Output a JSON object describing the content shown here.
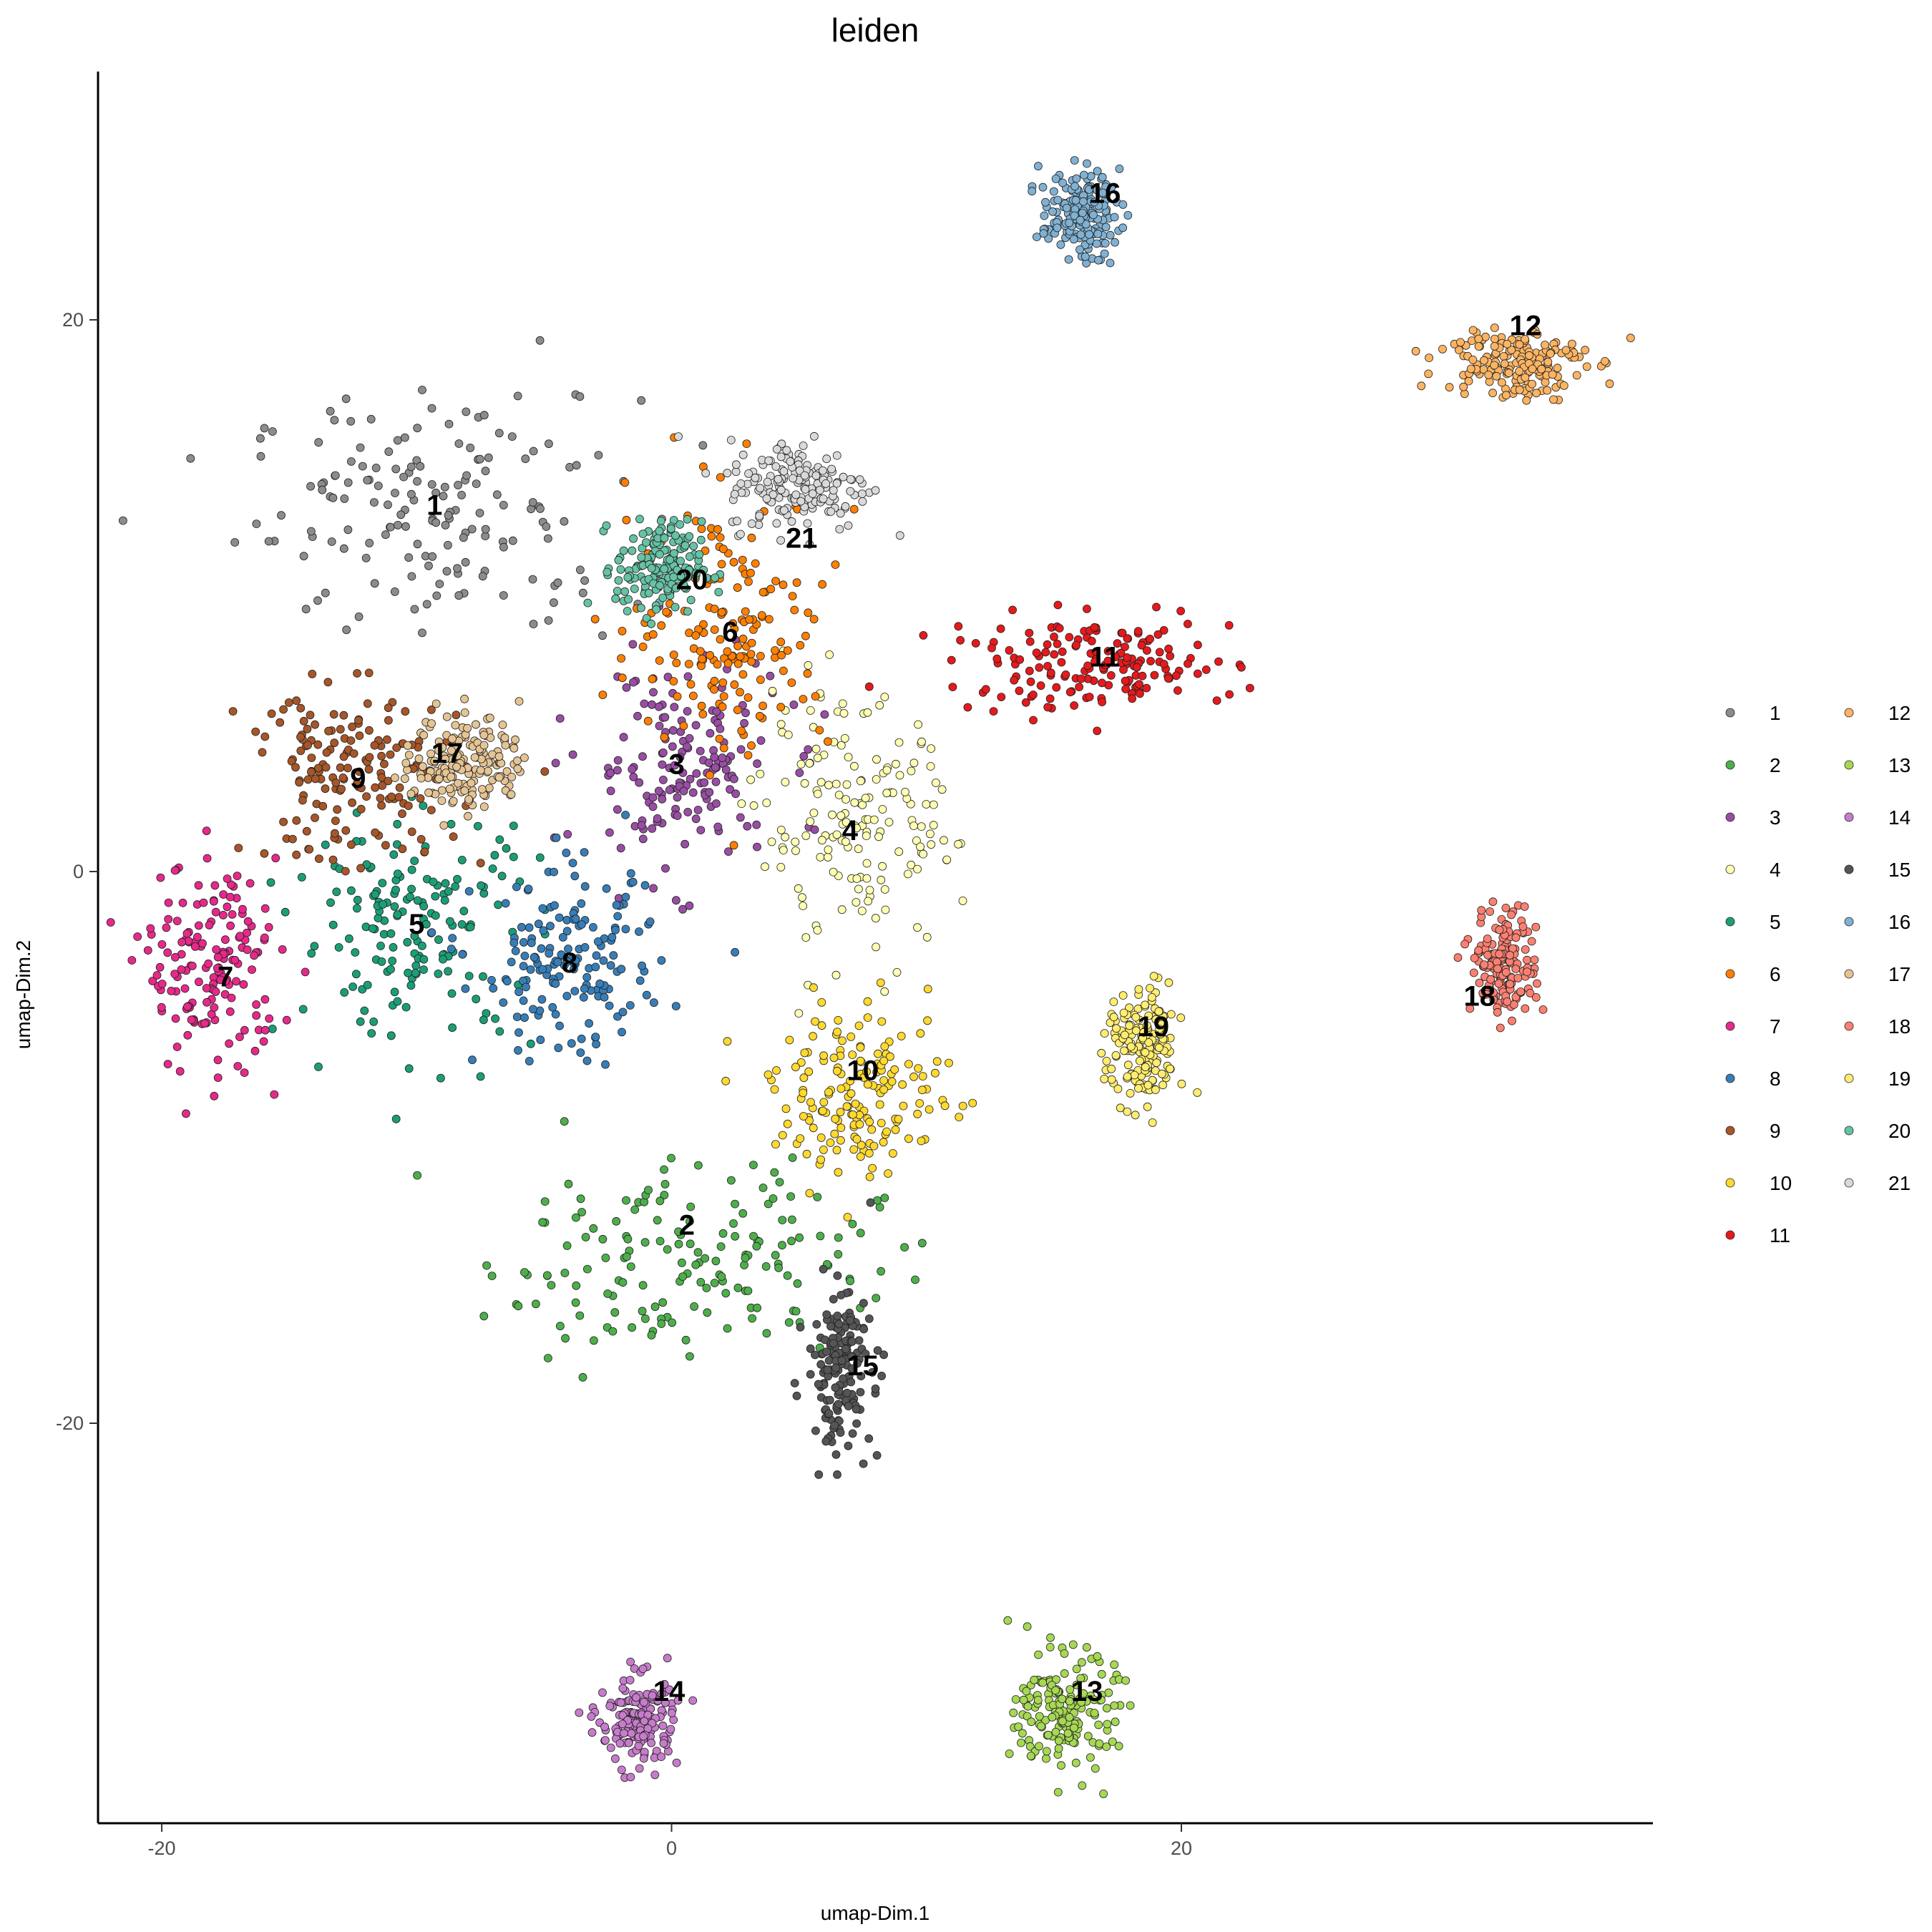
{
  "chart_data": {
    "type": "scatter",
    "title": "leiden",
    "xlabel": "umap-Dim.1",
    "ylabel": "umap-Dim.2",
    "xlim": [
      -22.5,
      38.5
    ],
    "ylim": [
      -34.5,
      29
    ],
    "xticks": [
      -20,
      0,
      20
    ],
    "yticks": [
      20,
      0,
      -20
    ],
    "xtick_labels": [
      "-20",
      "0",
      "20"
    ],
    "ytick_labels": [
      "20",
      "0",
      "-20"
    ],
    "grid": false,
    "legend_position": "right",
    "legend_columns": 2,
    "series": [
      {
        "name": "1",
        "color": "#8C8C8C",
        "center": [
          -9,
          13
        ],
        "spread": [
          5.5,
          3.0
        ]
      },
      {
        "name": "2",
        "color": "#4DAF4A",
        "center": [
          0.5,
          -14
        ],
        "spread": [
          5.5,
          2.6
        ]
      },
      {
        "name": "3",
        "color": "#984EA3",
        "center": [
          0.3,
          3.8
        ],
        "spread": [
          2.8,
          2.8
        ]
      },
      {
        "name": "4",
        "color": "#FFFFB3",
        "center": [
          7.3,
          1.6
        ],
        "spread": [
          2.8,
          3.2
        ]
      },
      {
        "name": "5",
        "color": "#1B9E77",
        "center": [
          -10,
          -2
        ],
        "spread": [
          3.4,
          3.0
        ]
      },
      {
        "name": "6",
        "color": "#FF7F00",
        "center": [
          2.3,
          9
        ],
        "spread": [
          2.8,
          3.4
        ]
      },
      {
        "name": "7",
        "color": "#E7298A",
        "center": [
          -18,
          -3.5
        ],
        "spread": [
          1.9,
          2.7
        ]
      },
      {
        "name": "8",
        "color": "#377EB8",
        "center": [
          -4,
          -3.5
        ],
        "spread": [
          2.6,
          2.4
        ]
      },
      {
        "name": "9",
        "color": "#A65628",
        "center": [
          -12.5,
          3.5
        ],
        "spread": [
          3.0,
          2.2
        ]
      },
      {
        "name": "10",
        "color": "#FFD92F",
        "center": [
          7.5,
          -8
        ],
        "spread": [
          2.5,
          2.2
        ]
      },
      {
        "name": "11",
        "color": "#E41A1C",
        "center": [
          16.5,
          7.5
        ],
        "spread": [
          4.0,
          1.2
        ]
      },
      {
        "name": "12",
        "color": "#FDB462",
        "center": [
          33,
          18.5
        ],
        "spread": [
          2.0,
          1.0
        ]
      },
      {
        "name": "13",
        "color": "#A6D854",
        "center": [
          15.5,
          -30.5
        ],
        "spread": [
          1.4,
          1.5
        ]
      },
      {
        "name": "14",
        "color": "#C77CCB",
        "center": [
          -1.3,
          -30.8
        ],
        "spread": [
          1.1,
          1.2
        ]
      },
      {
        "name": "15",
        "color": "#555555",
        "center": [
          6.6,
          -18
        ],
        "spread": [
          0.9,
          2.0
        ]
      },
      {
        "name": "16",
        "color": "#80B1D3",
        "center": [
          16,
          23.8
        ],
        "spread": [
          1.1,
          1.1
        ]
      },
      {
        "name": "17",
        "color": "#E5C494",
        "center": [
          -8,
          4
        ],
        "spread": [
          1.5,
          1.3
        ]
      },
      {
        "name": "18",
        "color": "#FB8072",
        "center": [
          32.7,
          -3.3
        ],
        "spread": [
          0.9,
          1.4
        ]
      },
      {
        "name": "19",
        "color": "#FFED6F",
        "center": [
          18.5,
          -6.5
        ],
        "spread": [
          1.0,
          1.6
        ]
      },
      {
        "name": "20",
        "color": "#66C2A5",
        "center": [
          -0.5,
          11
        ],
        "spread": [
          1.2,
          1.2
        ]
      },
      {
        "name": "21",
        "color": "#D9D9D9",
        "center": [
          5,
          14
        ],
        "spread": [
          2.0,
          1.2
        ]
      }
    ],
    "cluster_labels": [
      {
        "text": "1",
        "x": -9.3,
        "y": 13.3
      },
      {
        "text": "2",
        "x": 0.6,
        "y": -12.8
      },
      {
        "text": "3",
        "x": 0.2,
        "y": 3.9
      },
      {
        "text": "4",
        "x": 7.0,
        "y": 1.5
      },
      {
        "text": "5",
        "x": -10.0,
        "y": -1.9
      },
      {
        "text": "6",
        "x": 2.3,
        "y": 8.7
      },
      {
        "text": "7",
        "x": -17.5,
        "y": -3.8
      },
      {
        "text": "8",
        "x": -4.0,
        "y": -3.3
      },
      {
        "text": "9",
        "x": -12.3,
        "y": 3.4
      },
      {
        "text": "10",
        "x": 7.5,
        "y": -7.2
      },
      {
        "text": "11",
        "x": 17.0,
        "y": 7.8
      },
      {
        "text": "12",
        "x": 33.5,
        "y": 19.8
      },
      {
        "text": "13",
        "x": 16.3,
        "y": -29.7
      },
      {
        "text": "14",
        "x": -0.1,
        "y": -29.7
      },
      {
        "text": "15",
        "x": 7.5,
        "y": -17.9
      },
      {
        "text": "16",
        "x": 17.0,
        "y": 24.6
      },
      {
        "text": "17",
        "x": -8.8,
        "y": 4.3
      },
      {
        "text": "18",
        "x": 31.7,
        "y": -4.5
      },
      {
        "text": "19",
        "x": 18.9,
        "y": -5.6
      },
      {
        "text": "20",
        "x": 0.8,
        "y": 10.6
      },
      {
        "text": "21",
        "x": 5.1,
        "y": 12.1
      }
    ]
  }
}
